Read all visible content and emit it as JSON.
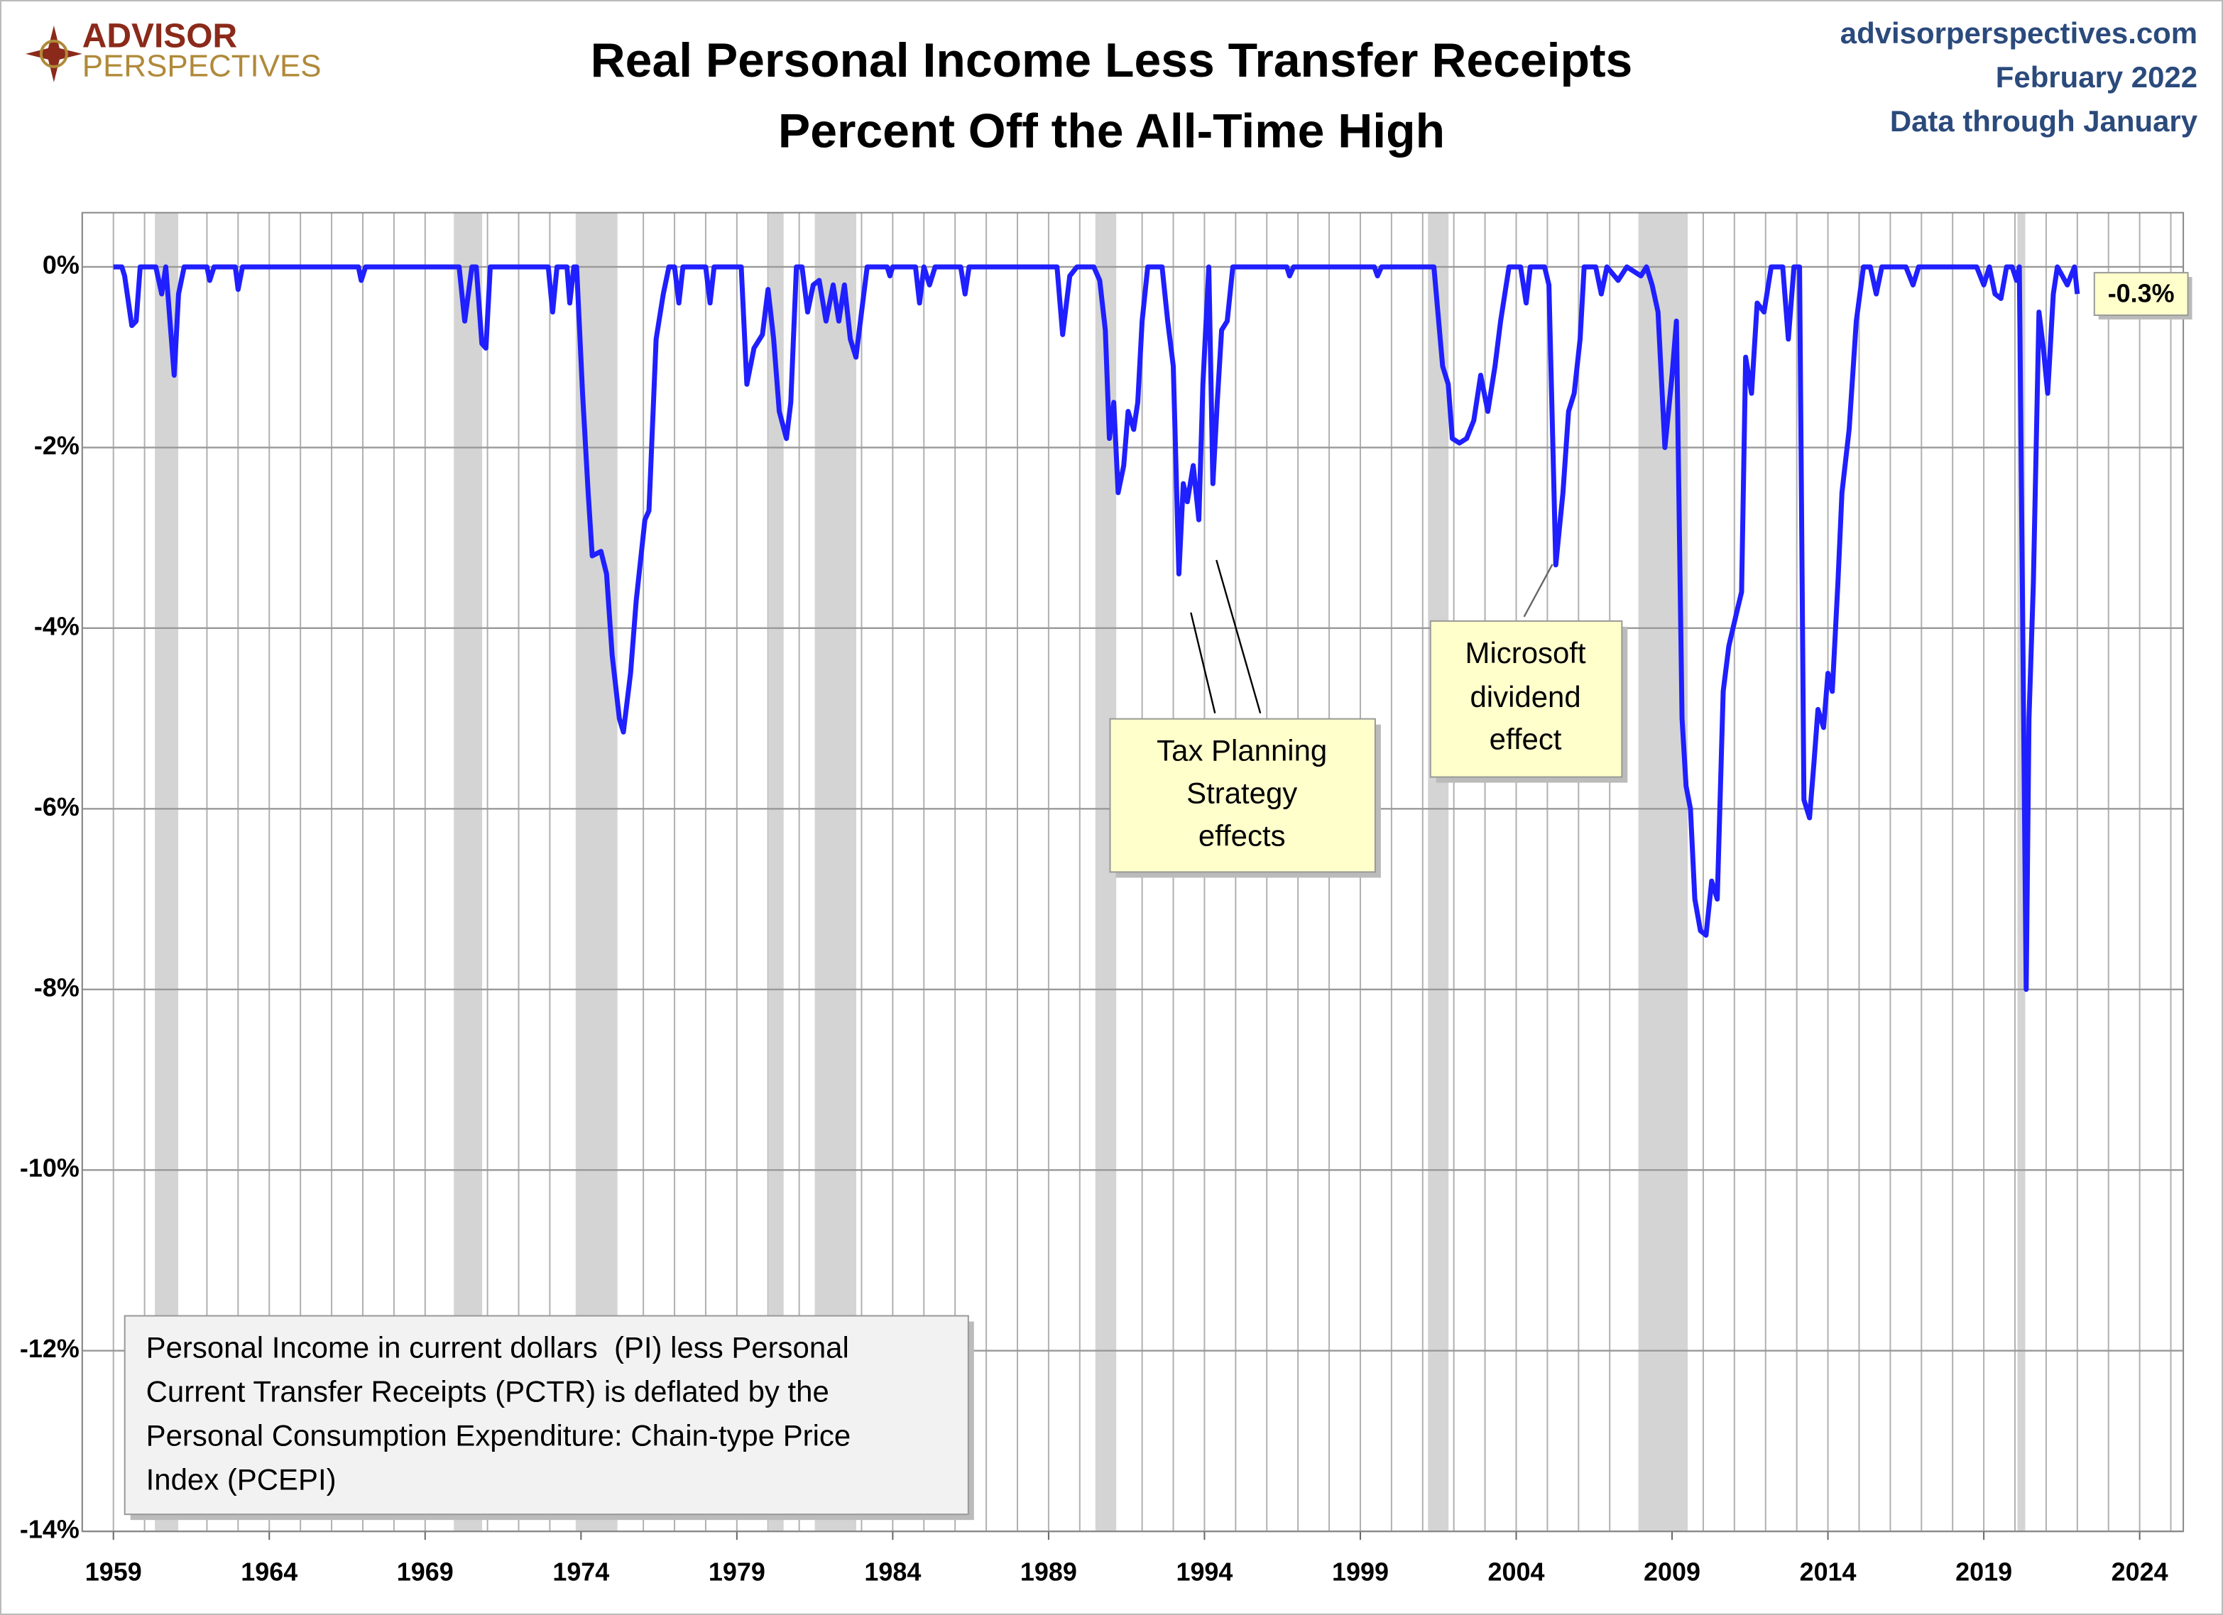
{
  "chart_data": {
    "type": "line",
    "title": [
      "Real Personal Income Less Transfer Receipts",
      "Percent Off the All-Time High"
    ],
    "source": [
      "advisorperspectives.com",
      "February 2022",
      "Data through January"
    ],
    "logo": [
      "ADVISOR",
      "PERSPECTIVES"
    ],
    "color": "#1f1fff",
    "recession_color": "#d4d4d4",
    "grid": true,
    "xlim": [
      1958,
      2025.4
    ],
    "ylim": [
      -14,
      0.6
    ],
    "xticks": [
      1959,
      1964,
      1969,
      1974,
      1979,
      1984,
      1989,
      1994,
      1999,
      2004,
      2009,
      2014,
      2019,
      2024
    ],
    "x_minor_ticks": [
      1958,
      1959,
      1960,
      1961,
      1962,
      1963,
      1964,
      1965,
      1966,
      1967,
      1968,
      1969,
      1970,
      1971,
      1972,
      1973,
      1974,
      1975,
      1976,
      1977,
      1978,
      1979,
      1980,
      1981,
      1982,
      1983,
      1984,
      1985,
      1986,
      1987,
      1988,
      1989,
      1990,
      1991,
      1992,
      1993,
      1994,
      1995,
      1996,
      1997,
      1998,
      1999,
      2000,
      2001,
      2002,
      2003,
      2004,
      2005,
      2006,
      2007,
      2008,
      2009,
      2010,
      2011,
      2012,
      2013,
      2014,
      2015,
      2016,
      2017,
      2018,
      2019,
      2020,
      2021,
      2022,
      2023,
      2024,
      2025
    ],
    "yticks": [
      {
        "value": 0,
        "label": "0%"
      },
      {
        "value": -2,
        "label": "-2%"
      },
      {
        "value": -4,
        "label": "-4%"
      },
      {
        "value": -6,
        "label": "-6%"
      },
      {
        "value": -8,
        "label": "-8%"
      },
      {
        "value": -10,
        "label": "-10%"
      },
      {
        "value": -12,
        "label": "-12%"
      },
      {
        "value": -14,
        "label": "-14%"
      }
    ],
    "recessions": [
      [
        1960.33,
        1961.08
      ],
      [
        1969.92,
        1970.83
      ],
      [
        1973.83,
        1975.17
      ],
      [
        1980.0,
        1980.5
      ],
      [
        1981.5,
        1982.83
      ],
      [
        1990.5,
        1991.17
      ],
      [
        2001.17,
        2001.83
      ],
      [
        2007.92,
        2009.5
      ],
      [
        2020.08,
        2020.33
      ]
    ],
    "x": [
      1959.0,
      1959.27,
      1959.36,
      1959.59,
      1959.73,
      1959.86,
      1960.36,
      1960.55,
      1960.68,
      1960.95,
      1961.09,
      1961.27,
      1962.0,
      1962.09,
      1962.23,
      1962.91,
      1963.0,
      1963.14,
      1966.86,
      1966.95,
      1967.09,
      1970.09,
      1970.27,
      1970.5,
      1970.64,
      1970.82,
      1970.95,
      1971.09,
      1972.95,
      1973.09,
      1973.23,
      1973.55,
      1973.64,
      1973.77,
      1973.86,
      1974.05,
      1974.23,
      1974.36,
      1974.64,
      1974.82,
      1975.0,
      1975.23,
      1975.36,
      1975.59,
      1975.77,
      1976.05,
      1976.18,
      1976.41,
      1976.64,
      1976.82,
      1977.0,
      1977.14,
      1977.27,
      1978.0,
      1978.14,
      1978.27,
      1979.14,
      1979.32,
      1979.55,
      1979.82,
      1980.0,
      1980.18,
      1980.36,
      1980.59,
      1980.73,
      1980.91,
      1981.09,
      1981.27,
      1981.45,
      1981.64,
      1981.86,
      1982.09,
      1982.27,
      1982.45,
      1982.64,
      1982.82,
      1983.0,
      1983.18,
      1983.82,
      1983.91,
      1984.0,
      1984.73,
      1984.86,
      1985.0,
      1985.18,
      1985.36,
      1986.18,
      1986.32,
      1986.45,
      1989.27,
      1989.45,
      1989.68,
      1989.91,
      1990.45,
      1990.64,
      1990.82,
      1990.95,
      1991.09,
      1991.23,
      1991.41,
      1991.55,
      1991.73,
      1991.86,
      1992.0,
      1992.18,
      1992.64,
      1992.82,
      1993.0,
      1993.18,
      1993.32,
      1993.45,
      1993.64,
      1993.82,
      1993.95,
      1994.14,
      1994.27,
      1994.41,
      1994.55,
      1994.73,
      1994.91,
      1996.64,
      1996.73,
      1996.86,
      1999.45,
      1999.55,
      1999.68,
      2001.36,
      2001.64,
      2001.82,
      2001.95,
      2002.18,
      2002.41,
      2002.64,
      2002.86,
      2003.09,
      2003.32,
      2003.5,
      2003.77,
      2004.14,
      2004.32,
      2004.45,
      2004.91,
      2005.05,
      2005.27,
      2005.5,
      2005.68,
      2005.86,
      2006.05,
      2006.18,
      2006.55,
      2006.73,
      2006.91,
      2007.27,
      2007.55,
      2008.0,
      2008.18,
      2008.36,
      2008.55,
      2008.77,
      2009.0,
      2009.14,
      2009.32,
      2009.45,
      2009.59,
      2009.73,
      2009.91,
      2010.09,
      2010.27,
      2010.45,
      2010.64,
      2010.82,
      2011.09,
      2011.23,
      2011.36,
      2011.55,
      2011.73,
      2011.95,
      2012.18,
      2012.55,
      2012.73,
      2012.91,
      2013.09,
      2013.23,
      2013.41,
      2013.55,
      2013.68,
      2013.86,
      2014.0,
      2014.14,
      2014.32,
      2014.45,
      2014.68,
      2014.91,
      2015.14,
      2015.36,
      2015.55,
      2015.73,
      2016.5,
      2016.73,
      2016.91,
      2018.77,
      2019.0,
      2019.18,
      2019.36,
      2019.55,
      2019.73,
      2019.91,
      2020.05,
      2020.14,
      2020.36,
      2020.45,
      2020.59,
      2020.77,
      2020.91,
      2021.05,
      2021.23,
      2021.36,
      2021.68,
      2021.91,
      2022.0
    ],
    "values": [
      0,
      0,
      -0.1,
      -0.65,
      -0.6,
      0,
      0,
      -0.3,
      0,
      -1.2,
      -0.3,
      0,
      0,
      -0.15,
      0,
      0,
      -0.25,
      0,
      0,
      -0.15,
      0,
      0,
      -0.6,
      0,
      0,
      -0.85,
      -0.9,
      0,
      0,
      -0.5,
      0,
      0,
      -0.4,
      0,
      0,
      -1.4,
      -2.5,
      -3.2,
      -3.15,
      -3.4,
      -4.3,
      -5.0,
      -5.15,
      -4.5,
      -3.7,
      -2.8,
      -2.7,
      -0.8,
      -0.3,
      0,
      0,
      -0.4,
      0,
      0,
      -0.4,
      0,
      0,
      -1.3,
      -0.9,
      -0.75,
      -0.25,
      -0.8,
      -1.6,
      -1.9,
      -1.5,
      0,
      0,
      -0.5,
      -0.2,
      -0.15,
      -0.6,
      -0.2,
      -0.6,
      -0.2,
      -0.8,
      -1.0,
      -0.5,
      0,
      0,
      -0.1,
      0,
      0,
      -0.4,
      0,
      -0.2,
      0,
      0,
      -0.3,
      0,
      0,
      -0.75,
      -0.1,
      0,
      0,
      -0.15,
      -0.7,
      -1.9,
      -1.5,
      -2.5,
      -2.2,
      -1.6,
      -1.8,
      -1.5,
      -0.6,
      0,
      0,
      -0.6,
      -1.1,
      -3.4,
      -2.4,
      -2.6,
      -2.2,
      -2.8,
      -1.3,
      0,
      -2.4,
      -1.5,
      -0.7,
      -0.6,
      0,
      0,
      -0.1,
      0,
      0,
      -0.1,
      0,
      0,
      -1.1,
      -1.3,
      -1.9,
      -1.95,
      -1.9,
      -1.7,
      -1.2,
      -1.6,
      -1.1,
      -0.6,
      0,
      0,
      -0.4,
      0,
      0,
      -0.2,
      -3.3,
      -2.5,
      -1.6,
      -1.4,
      -0.8,
      0,
      0,
      -0.3,
      0,
      -0.15,
      0,
      -0.1,
      0,
      -0.2,
      -0.5,
      -2.0,
      -1.2,
      -0.6,
      -5.0,
      -5.75,
      -6.0,
      -7.0,
      -7.35,
      -7.4,
      -6.8,
      -7.0,
      -4.7,
      -4.2,
      -3.8,
      -3.6,
      -1.0,
      -1.4,
      -0.4,
      -0.5,
      0,
      0,
      -0.8,
      0,
      0,
      -5.9,
      -6.1,
      -5.5,
      -4.9,
      -5.1,
      -4.5,
      -4.7,
      -3.5,
      -2.5,
      -1.8,
      -0.6,
      0,
      0,
      -0.3,
      0,
      0,
      -0.2,
      0,
      0,
      -0.2,
      0,
      -0.3,
      -0.35,
      0,
      0,
      -0.15,
      0,
      -8.0,
      -5.0,
      -3.5,
      -0.5,
      -0.9,
      -1.4,
      -0.3,
      0,
      -0.2,
      0,
      -0.3
    ],
    "value_labels": {
      "219": "-0.3%"
    },
    "annotations": [
      {
        "text": [
          "Tax Planning",
          "Strategy",
          "effects"
        ]
      },
      {
        "text": [
          "Microsoft",
          "dividend",
          "effect"
        ]
      }
    ],
    "note": [
      "Personal Income in current dollars  (PI) less Personal",
      "Current Transfer Receipts (PCTR) is deflated by the",
      "Personal Consumption Expenditure: Chain-type Price",
      "Index (PCEPI)"
    ]
  }
}
